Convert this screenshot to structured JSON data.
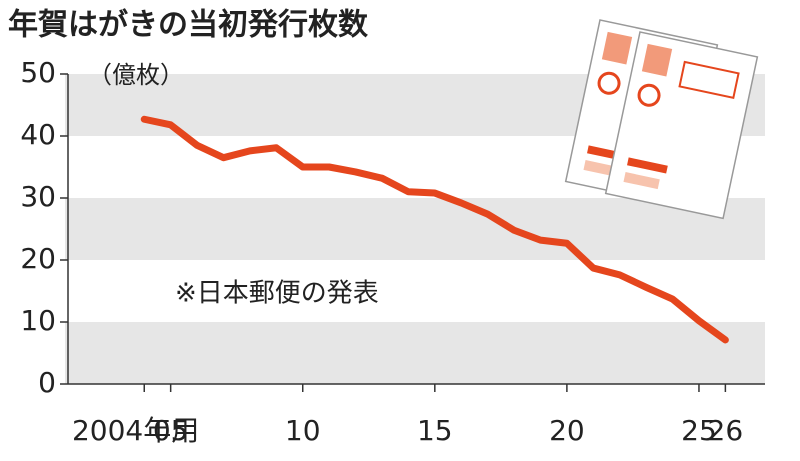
{
  "chart_data": {
    "type": "line",
    "title": "年賀はがきの当初発行枚数",
    "y_unit": "（億枚）",
    "annotation": "※日本郵便の発表",
    "x": [
      2004,
      2005,
      2006,
      2007,
      2008,
      2009,
      2010,
      2011,
      2012,
      2013,
      2014,
      2015,
      2016,
      2017,
      2018,
      2019,
      2020,
      2021,
      2022,
      2023,
      2024,
      2025,
      2026
    ],
    "values": [
      42.7,
      41.8,
      38.5,
      36.5,
      37.6,
      38.1,
      35.0,
      35.0,
      34.2,
      33.2,
      31.0,
      30.8,
      29.2,
      27.4,
      24.8,
      23.2,
      22.7,
      18.7,
      17.6,
      15.6,
      13.7,
      10.2,
      7.1
    ],
    "color": "#e5461d",
    "xlim": [
      2001,
      2027.5
    ],
    "xticks": [
      {
        "value": 2004,
        "label": "2004年用"
      },
      {
        "value": 2005,
        "label": "05"
      },
      {
        "value": 2010,
        "label": "10"
      },
      {
        "value": 2015,
        "label": "15"
      },
      {
        "value": 2020,
        "label": "20"
      },
      {
        "value": 2025,
        "label": "25"
      },
      {
        "value": 2026,
        "label": "26"
      }
    ],
    "ylim": [
      0,
      50
    ],
    "yticks": [
      0,
      10,
      20,
      30,
      40,
      50
    ],
    "banded": true
  }
}
